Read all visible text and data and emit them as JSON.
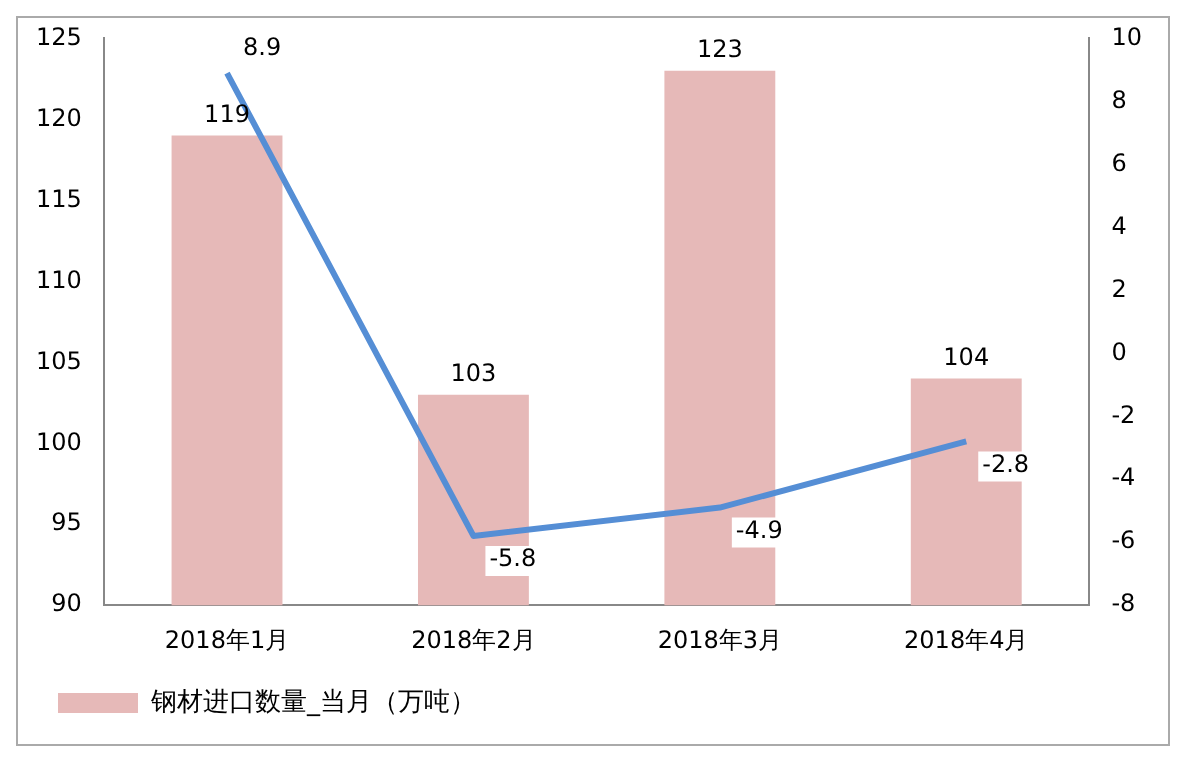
{
  "chart_data": {
    "type": "bar",
    "categories": [
      "2018年1月",
      "2018年2月",
      "2018年3月",
      "2018年4月"
    ],
    "series": [
      {
        "name": "钢材进口数量_当月（万吨）",
        "color": "#e6b9b8",
        "values": [
          119,
          103,
          123,
          104
        ]
      },
      {
        "type": "line",
        "axis": "y2",
        "color": "#558ed5",
        "values": [
          8.9,
          -5.8,
          -4.9,
          -2.8
        ]
      }
    ],
    "ylim": [
      90,
      125
    ],
    "yticks": [
      90,
      95,
      100,
      105,
      110,
      115,
      120,
      125
    ],
    "y2lim": [
      -8,
      10
    ],
    "y2ticks": [
      -8,
      -6,
      -4,
      -2,
      0,
      2,
      4,
      6,
      8,
      10
    ],
    "data_labels": true,
    "legend": "bottom",
    "grid": false,
    "marker": "none"
  }
}
